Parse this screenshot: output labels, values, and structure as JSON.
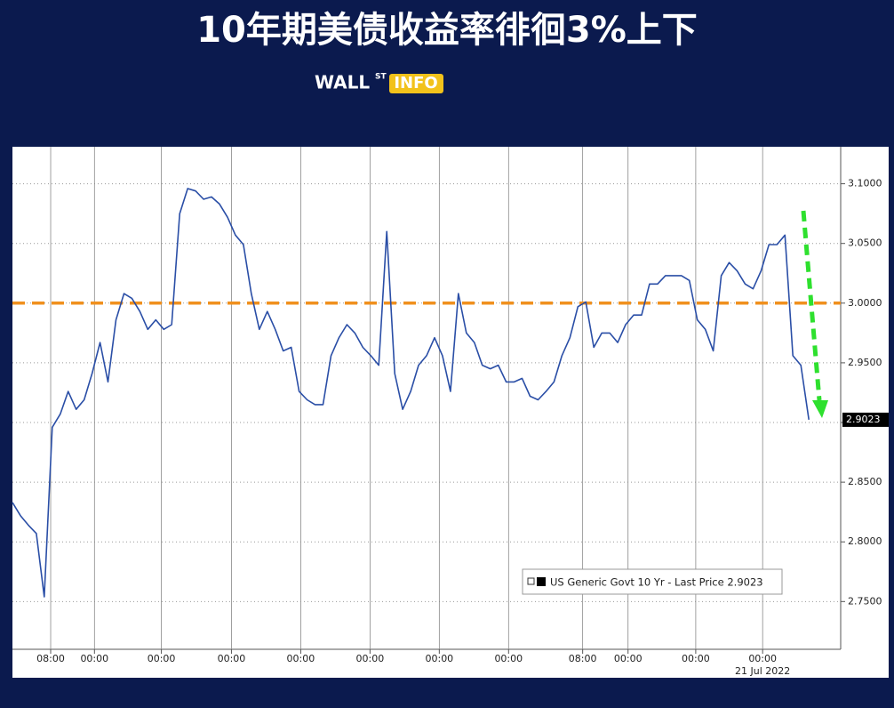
{
  "logo": {
    "main": "WALL",
    "sup": "ST",
    "box": "INFO"
  },
  "chart_data": {
    "type": "line",
    "title": "10年期美债收益率徘徊3%上下",
    "series": [
      {
        "name": "US Generic Govt 10 Yr - Last Price 2.9023",
        "color": "#2a4ea6",
        "values": [
          2.833,
          2.822,
          2.814,
          2.807,
          2.754,
          2.896,
          2.907,
          2.926,
          2.911,
          2.919,
          2.941,
          2.967,
          2.934,
          2.986,
          3.008,
          3.004,
          2.993,
          2.978,
          2.986,
          2.978,
          2.982,
          3.075,
          3.096,
          3.094,
          3.087,
          3.089,
          3.083,
          3.072,
          3.057,
          3.049,
          3.008,
          2.978,
          2.993,
          2.978,
          2.96,
          2.963,
          2.926,
          2.919,
          2.915,
          2.915,
          2.956,
          2.971,
          2.982,
          2.975,
          2.963,
          2.956,
          2.948,
          3.06,
          2.941,
          2.911,
          2.926,
          2.948,
          2.956,
          2.971,
          2.956,
          2.926,
          3.008,
          2.975,
          2.967,
          2.948,
          2.945,
          2.948,
          2.934,
          2.934,
          2.937,
          2.922,
          2.919,
          2.926,
          2.934,
          2.956,
          2.971,
          2.997,
          3.001,
          2.963,
          2.975,
          2.975,
          2.967,
          2.982,
          2.99,
          2.99,
          3.016,
          3.016,
          3.023,
          3.023,
          3.023,
          3.019,
          2.986,
          2.978,
          2.96,
          3.023,
          3.034,
          3.027,
          3.016,
          3.012,
          3.027,
          3.049,
          3.049,
          3.057,
          2.956,
          2.948,
          2.9023
        ]
      }
    ],
    "xlim": [
      0,
      104
    ],
    "xticks": [
      {
        "value": 4.8,
        "label": "08:00"
      },
      {
        "value": 10.3,
        "label": "00:00"
      },
      {
        "value": 18.7,
        "label": "00:00"
      },
      {
        "value": 27.5,
        "label": "00:00"
      },
      {
        "value": 36.2,
        "label": "00:00"
      },
      {
        "value": 44.9,
        "label": "00:00"
      },
      {
        "value": 53.6,
        "label": "00:00"
      },
      {
        "value": 62.3,
        "label": "00:00"
      },
      {
        "value": 71.6,
        "label": "08:00"
      },
      {
        "value": 77.3,
        "label": "00:00"
      },
      {
        "value": 85.8,
        "label": "00:00"
      },
      {
        "value": 94.2,
        "label": "00:00"
      }
    ],
    "date_label": "21 Jul 2022",
    "ylim": [
      2.71,
      3.131
    ],
    "yticks": [
      {
        "value": 2.75,
        "label": "2.7500"
      },
      {
        "value": 2.8,
        "label": "2.8000"
      },
      {
        "value": 2.85,
        "label": "2.8500"
      },
      {
        "value": 2.9,
        "label": "2.9000"
      },
      {
        "value": 2.95,
        "label": "2.9500"
      },
      {
        "value": 3.0,
        "label": "3.0000"
      },
      {
        "value": 3.05,
        "label": "3.0500"
      },
      {
        "value": 3.1,
        "label": "3.1000"
      }
    ],
    "reference_line": {
      "value": 3.0,
      "color": "#f0901e"
    },
    "grid": true
  }
}
